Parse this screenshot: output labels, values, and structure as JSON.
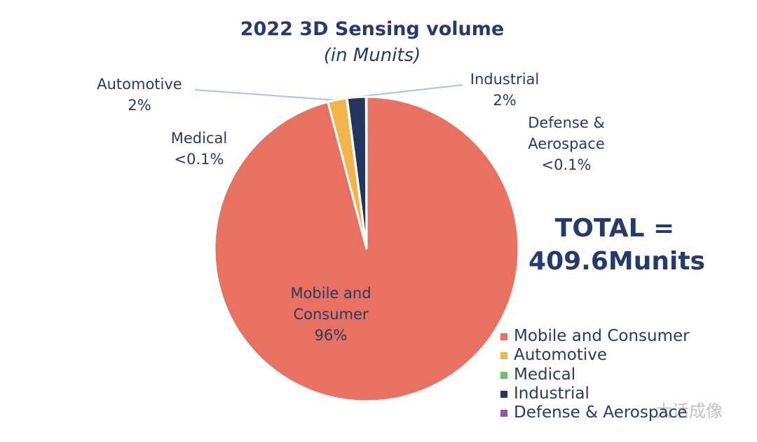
{
  "chart_data": {
    "type": "pie",
    "title": "2022 3D Sensing volume",
    "subtitle": "(in Munits)",
    "total_label": [
      "TOTAL =",
      "409.6Munits"
    ],
    "categories": [
      "Mobile and Consumer",
      "Automotive",
      "Medical",
      "Industrial",
      "Defense & Aerospace"
    ],
    "values": [
      96,
      2,
      0.05,
      2,
      0.05
    ],
    "value_labels": [
      "96%",
      "2%",
      "<0.1%",
      "2%",
      "<0.1%"
    ],
    "colors": [
      "#e87161",
      "#f2b54c",
      "#6dbe6d",
      "#233660",
      "#8e5a9b"
    ],
    "watermark": "大话成像"
  }
}
